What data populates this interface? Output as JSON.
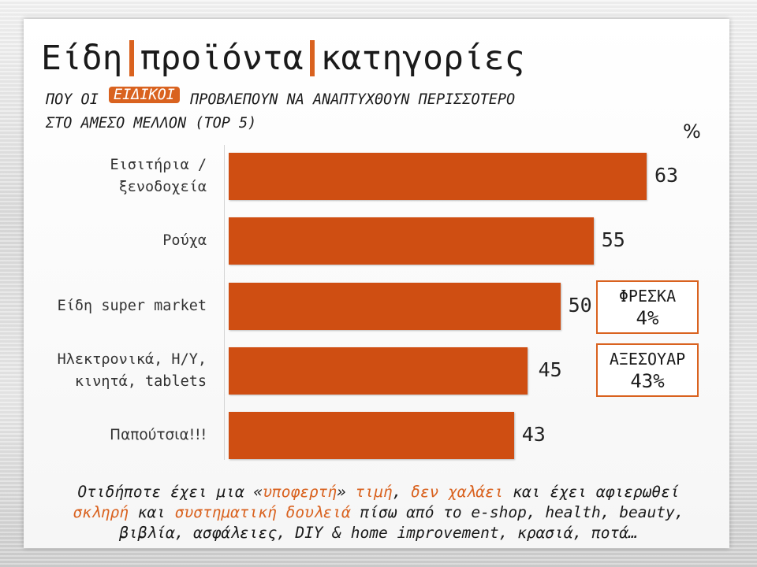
{
  "title_parts": [
    "Είδη",
    "προϊόντα",
    "κατηγορίες"
  ],
  "subtitle": {
    "prefix": "ΠΟΥ ΟΙ",
    "badge": "ΕΙΔΙΚΟΙ",
    "suffix": "ΠΡΟΒΛΕΠΟΥΝ ΝΑ ΑΝΑΠΤΥΧΘΟΥΝ ΠΕΡΙΣΣΟΤΕΡΟ",
    "line2": "ΣΤΟ ΑΜΕΣΟ ΜΕΛΛΟΝ (TOP 5)"
  },
  "unit": "%",
  "chart_data": {
    "type": "bar",
    "orientation": "horizontal",
    "categories": [
      "Εισιτήρια / ξενοδοχεία",
      "Ρούχα",
      "Είδη super market",
      "Ηλεκτρονικά, Η/Υ, κινητά, tablets",
      "Παπούτσια!!!"
    ],
    "category_lines": [
      [
        "Εισιτήρια /",
        "ξενοδοχεία"
      ],
      [
        "Ρούχα"
      ],
      [
        "Είδη super market"
      ],
      [
        "Ηλεκτρονικά, Η/Υ,",
        "κινητά, tablets"
      ],
      [
        "Παπούτσια!!!"
      ]
    ],
    "values": [
      63,
      55,
      50,
      45,
      43
    ],
    "value_labels": [
      "63",
      "55",
      "50",
      "45",
      "43"
    ],
    "xlim": [
      0,
      70
    ],
    "bar_color": "#cf4e12",
    "callouts": [
      {
        "label": "ΦΡΕΣΚΑ",
        "value": "4%"
      },
      {
        "label": "ΑΞΕΣΟΥΑΡ",
        "value": "43%"
      }
    ]
  },
  "footer": {
    "line1": [
      {
        "t": "Οτιδήποτε έχει μια «",
        "hl": false
      },
      {
        "t": "υποφερτή",
        "hl": true
      },
      {
        "t": "» ",
        "hl": false
      },
      {
        "t": "τιμή",
        "hl": true
      },
      {
        "t": ", ",
        "hl": false
      },
      {
        "t": "δεν χαλάει",
        "hl": true
      },
      {
        "t": " και έχει αφιερωθεί",
        "hl": false
      }
    ],
    "line2": [
      {
        "t": "σκληρή",
        "hl": true
      },
      {
        "t": " και ",
        "hl": false
      },
      {
        "t": "συστηματική δουλειά",
        "hl": true
      },
      {
        "t": " πίσω από το e-shop, health, beauty,",
        "hl": false
      }
    ],
    "line3": [
      {
        "t": "βιβλία, ασφάλειες, DIY & home improvement, κρασιά, ποτά…",
        "hl": false
      }
    ]
  },
  "colors": {
    "accent": "#d9621f",
    "bar": "#cf4e12"
  }
}
